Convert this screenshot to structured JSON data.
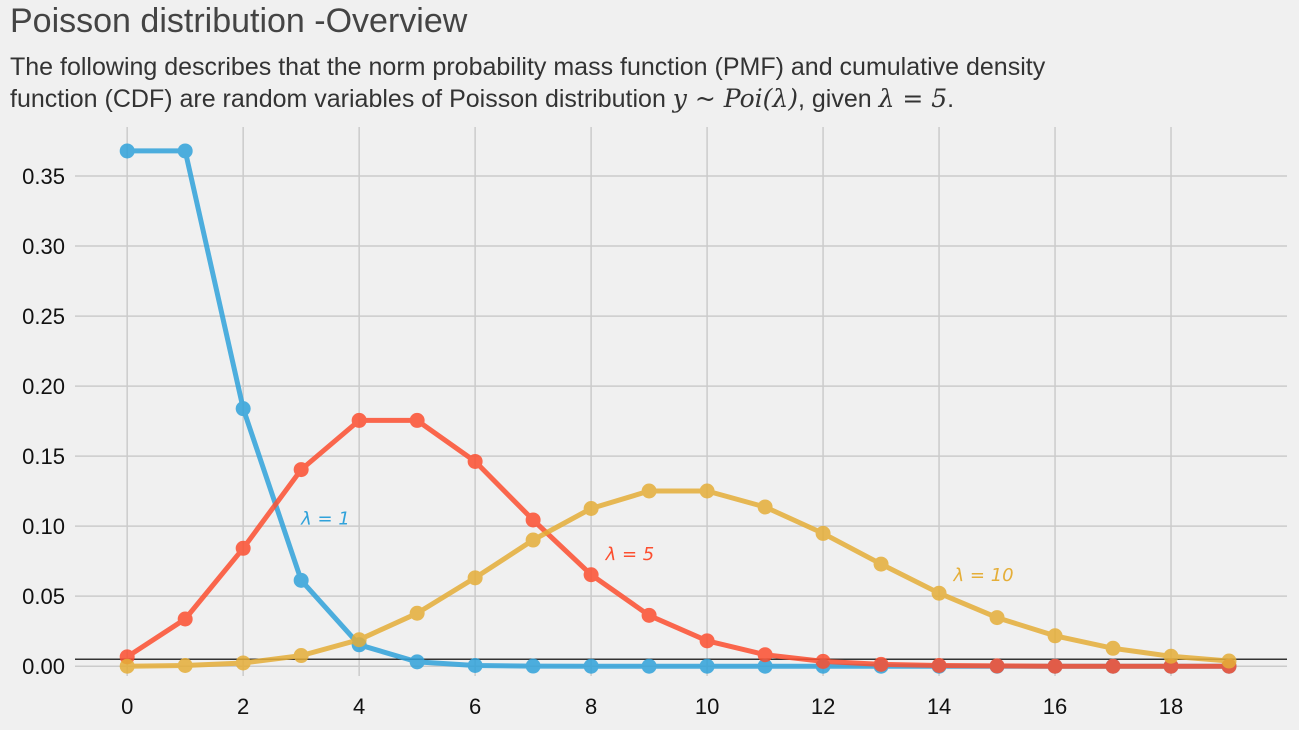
{
  "title": "Poisson distribution -Overview",
  "subtitle": {
    "line1": "The following describes that the norm probability mass function (PMF) and cumulative density",
    "line2_prefix": " function (CDF) are random variables of Poisson distribution ",
    "line2_math": "y ~ Poi(λ)",
    "line2_mid": ", given ",
    "line2_math2": "λ = 5",
    "line2_suffix": "."
  },
  "chart_data": {
    "type": "line",
    "x": [
      0,
      1,
      2,
      3,
      4,
      5,
      6,
      7,
      8,
      9,
      10,
      11,
      12,
      13,
      14,
      15,
      16,
      17,
      18,
      19
    ],
    "xticks": [
      0,
      2,
      4,
      6,
      8,
      10,
      12,
      14,
      16,
      18
    ],
    "yticks": [
      0.0,
      0.05,
      0.1,
      0.15,
      0.2,
      0.25,
      0.3,
      0.35
    ],
    "ytick_labels": [
      "0.00",
      "0.05",
      "0.10",
      "0.15",
      "0.20",
      "0.25",
      "0.30",
      "0.35"
    ],
    "xlim": [
      -0.9,
      20.0
    ],
    "ylim": [
      -0.007,
      0.385
    ],
    "grid": true,
    "baseline": 0.005,
    "series": [
      {
        "color": "#30a2da",
        "label_text": "λ = 1",
        "label_at": [
          3.0,
          0.101
        ],
        "values": [
          0.3679,
          0.3679,
          0.1839,
          0.0613,
          0.0153,
          0.0031,
          0.0005,
          0.0001,
          0,
          0,
          0,
          0,
          0,
          0,
          0,
          0,
          0,
          0,
          0,
          0
        ]
      },
      {
        "color": "#fc4f30",
        "label_text": "λ = 5",
        "label_at": [
          8.25,
          0.076
        ],
        "values": [
          0.0067,
          0.0337,
          0.0842,
          0.1404,
          0.1755,
          0.1755,
          0.1462,
          0.1044,
          0.0653,
          0.0363,
          0.0181,
          0.0082,
          0.0034,
          0.0013,
          0.0005,
          0.0002,
          0.0,
          0.0,
          0.0,
          0.0
        ]
      },
      {
        "color": "#e5ae38",
        "label_text": "λ = 10",
        "label_at": [
          14.25,
          0.061
        ],
        "values": [
          0.0,
          0.0005,
          0.0023,
          0.0076,
          0.0189,
          0.0378,
          0.0631,
          0.0901,
          0.1126,
          0.1251,
          0.1251,
          0.1137,
          0.0948,
          0.0729,
          0.0521,
          0.0347,
          0.0217,
          0.0128,
          0.0071,
          0.0037
        ]
      }
    ]
  }
}
